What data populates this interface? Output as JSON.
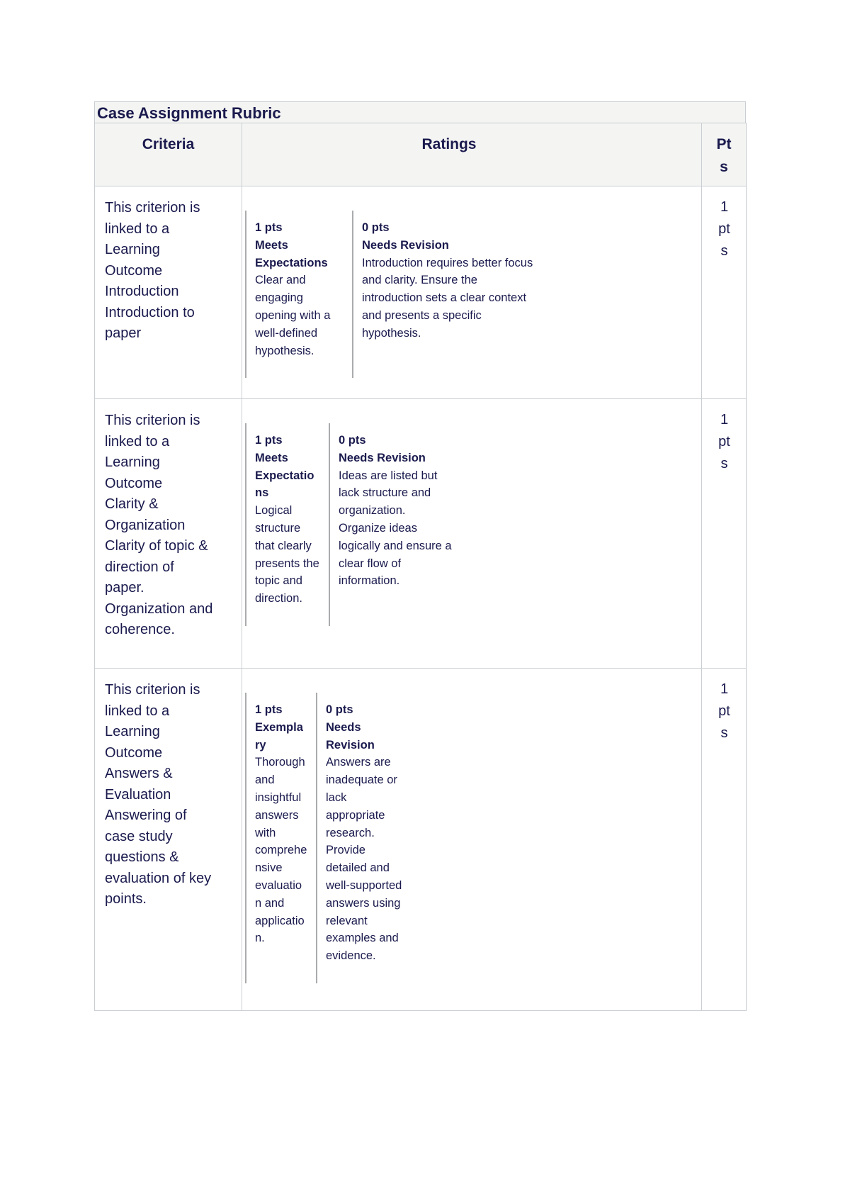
{
  "title": "Case Assignment Rubric",
  "colors": {
    "text_navy": "#1a1a4e",
    "band_gray": "#f4f4f3",
    "border_light": "#c9ced2",
    "rating_divider": "#a9abad",
    "page_background": "#ffffff"
  },
  "table": {
    "headers": {
      "criteria": "Criteria",
      "ratings": "Ratings",
      "pts": "Pts"
    },
    "rows": [
      {
        "criterion": {
          "linked_text": "This criterion is linked to a Learning Outcome",
          "outcome": "Introduction",
          "description": "Introduction to paper"
        },
        "ratings": [
          {
            "points": "1 pts",
            "title": "Meets Expectations",
            "description": "Clear and engaging opening with a well-defined hypothesis."
          },
          {
            "points": "0 pts",
            "title": "Needs Revision",
            "description": "Introduction requires better focus and clarity. Ensure the introduction sets a clear context and presents a specific hypothesis."
          }
        ],
        "pts": "1 pts"
      },
      {
        "criterion": {
          "linked_text": "This criterion is linked to a Learning Outcome",
          "outcome": "Clarity & Organization",
          "description": "Clarity of topic & direction of paper. Organization and coherence."
        },
        "ratings": [
          {
            "points": "1 pts",
            "title": "Meets Expectations",
            "description": "Logical structure that clearly presents the topic and direction."
          },
          {
            "points": "0 pts",
            "title": "Needs Revision",
            "description": "Ideas are listed but lack structure and organization. Organize ideas logically and ensure a clear flow of information."
          }
        ],
        "pts": "1 pts"
      },
      {
        "criterion": {
          "linked_text": "This criterion is linked to a Learning Outcome",
          "outcome": "Answers & Evaluation",
          "description": "Answering of case study questions & evaluation of key points."
        },
        "ratings": [
          {
            "points": "1 pts",
            "title": "Exemplary",
            "description": "Thorough and insightful answers with comprehensive evaluation and application."
          },
          {
            "points": "0 pts",
            "title": "Needs Revision",
            "description": "Answers are inadequate or lack appropriate research. Provide detailed and well-supported answers using relevant examples and evidence."
          }
        ],
        "pts": "1 pts"
      }
    ]
  }
}
